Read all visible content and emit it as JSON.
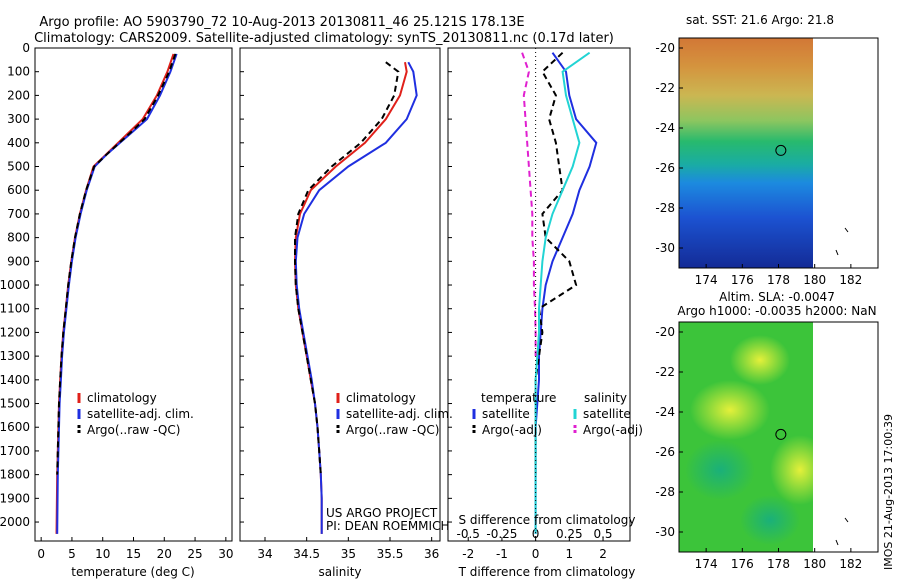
{
  "header": {
    "line1": "Argo profile: AO 5903790_72 10-Aug-2013 20130811_46 25.121S 178.13E",
    "line2": "Climatology: CARS2009. Satellite-adjusted climatology: synTS_20130811.nc (0.17d later)"
  },
  "colors": {
    "climatology": "#e0201a",
    "satellite": "#1f2fe0",
    "argo": "#000000",
    "sal_satellite": "#22d4d4",
    "sal_argo": "#e020d0"
  },
  "chart_data": [
    {
      "id": "temperature",
      "type": "line",
      "xlabel": "temperature (deg C)",
      "ylabel": "",
      "xlim": [
        -1,
        31
      ],
      "ylim": [
        2080,
        0
      ],
      "xticks": [
        0,
        5,
        10,
        15,
        20,
        25,
        30
      ],
      "yticks": [
        0,
        100,
        200,
        300,
        400,
        500,
        600,
        700,
        800,
        900,
        1000,
        1100,
        1200,
        1300,
        1400,
        1500,
        1600,
        1700,
        1800,
        1900,
        2000
      ],
      "legend": [
        "climatology",
        "satellite-adj. clim.",
        "Argo(..raw -QC)"
      ],
      "series": [
        {
          "name": "climatology",
          "style": "solid",
          "x": [
            21.5,
            20.5,
            18.8,
            16.5,
            14.5,
            12.5,
            10.5,
            8.5,
            7.3,
            6.3,
            5.5,
            4.9,
            4.4,
            4.0,
            3.6,
            3.3,
            3.1,
            2.9,
            2.8,
            2.7,
            2.6,
            2.5
          ],
          "y": [
            25,
            100,
            200,
            300,
            350,
            400,
            450,
            500,
            600,
            700,
            800,
            900,
            1000,
            1100,
            1200,
            1300,
            1400,
            1500,
            1600,
            1700,
            1800,
            2050
          ]
        },
        {
          "name": "satellite-adj. clim.",
          "style": "solid",
          "x": [
            22.0,
            21.0,
            19.3,
            17.2,
            15.0,
            12.8,
            10.6,
            8.7,
            7.4,
            6.4,
            5.6,
            5.0,
            4.5,
            4.1,
            3.7,
            3.4,
            3.2,
            3.0,
            2.9,
            2.8,
            2.7,
            2.6
          ],
          "y": [
            25,
            100,
            200,
            300,
            350,
            400,
            450,
            500,
            600,
            700,
            800,
            900,
            1000,
            1100,
            1200,
            1300,
            1400,
            1500,
            1600,
            1700,
            1800,
            2050
          ]
        },
        {
          "name": "Argo(..raw -QC)",
          "style": "dashed",
          "x": [
            21.8,
            20.8,
            19.0,
            16.8,
            14.8,
            12.7,
            10.6,
            8.6,
            7.3,
            6.3,
            5.5,
            4.9,
            4.4,
            4.0,
            3.6,
            3.3,
            3.1,
            2.9,
            2.8,
            2.7,
            2.6
          ],
          "y": [
            25,
            100,
            200,
            300,
            350,
            400,
            450,
            500,
            600,
            700,
            800,
            900,
            1000,
            1100,
            1200,
            1300,
            1400,
            1500,
            1600,
            1700,
            1800
          ]
        }
      ]
    },
    {
      "id": "salinity",
      "type": "line",
      "xlabel": "salinity",
      "ylabel": "",
      "xlim": [
        33.7,
        36.1
      ],
      "ylim": [
        2080,
        0
      ],
      "xticks": [
        34,
        34.5,
        35,
        35.5,
        36
      ],
      "legend": [
        "climatology",
        "satellite-adj. clim.",
        "Argo(..raw -QC)"
      ],
      "series": [
        {
          "name": "climatology",
          "style": "solid",
          "x": [
            35.68,
            35.7,
            35.62,
            35.45,
            35.2,
            34.85,
            34.55,
            34.42,
            34.37,
            34.36,
            34.37,
            34.4,
            34.45,
            34.5,
            34.55,
            34.6,
            34.63,
            34.65,
            34.67,
            34.68,
            34.68
          ],
          "y": [
            60,
            100,
            200,
            300,
            400,
            500,
            600,
            700,
            800,
            900,
            1000,
            1100,
            1200,
            1300,
            1400,
            1500,
            1600,
            1700,
            1800,
            1900,
            2050
          ]
        },
        {
          "name": "satellite-adj. clim.",
          "style": "solid",
          "x": [
            35.72,
            35.78,
            35.82,
            35.7,
            35.45,
            35.0,
            34.65,
            34.47,
            34.39,
            34.37,
            34.38,
            34.41,
            34.46,
            34.51,
            34.56,
            34.6,
            34.63,
            34.65,
            34.67,
            34.68,
            34.68
          ],
          "y": [
            60,
            100,
            200,
            300,
            400,
            500,
            600,
            700,
            800,
            900,
            1000,
            1100,
            1200,
            1300,
            1400,
            1500,
            1600,
            1700,
            1800,
            1900,
            2050
          ]
        },
        {
          "name": "Argo(..raw -QC)",
          "style": "dashed",
          "x": [
            35.45,
            35.6,
            35.55,
            35.4,
            35.15,
            34.8,
            34.52,
            34.4,
            34.36,
            34.36,
            34.37,
            34.4,
            34.45,
            34.5,
            34.55,
            34.6,
            34.63,
            34.65,
            34.67
          ],
          "y": [
            60,
            100,
            200,
            300,
            400,
            500,
            600,
            700,
            800,
            900,
            1000,
            1100,
            1200,
            1300,
            1400,
            1500,
            1600,
            1700,
            1800
          ]
        }
      ],
      "annotations": [
        "US ARGO PROJECT",
        "PI: DEAN ROEMMICH"
      ]
    },
    {
      "id": "difference",
      "type": "line",
      "xlabel": "T difference from climatology",
      "xlabel2": "S difference from climatology",
      "xlim": [
        -2.6,
        2.8
      ],
      "ylim": [
        2080,
        0
      ],
      "xticks": [
        -2,
        -1,
        0,
        1,
        2
      ],
      "xticks2": [
        -0.5,
        -0.25,
        0,
        0.25,
        0.5
      ],
      "legend_headers": [
        "temperature",
        "salinity"
      ],
      "legend": [
        "satellite",
        "Argo(-adj)",
        "satellite",
        "Argo(-adj)"
      ],
      "series": [
        {
          "name": "satellite",
          "quantity": "temperature",
          "style": "solid",
          "x": [
            0.5,
            0.9,
            1.0,
            1.2,
            1.8,
            1.6,
            1.3,
            1.1,
            0.8,
            0.5,
            0.3,
            0.2,
            0.15,
            0.1,
            0.1,
            0.05,
            0.0,
            0.0,
            0.0,
            0.0,
            0.0
          ],
          "y": [
            20,
            100,
            200,
            300,
            400,
            500,
            600,
            700,
            800,
            900,
            1000,
            1100,
            1200,
            1300,
            1400,
            1500,
            1600,
            1700,
            1800,
            1900,
            2050
          ]
        },
        {
          "name": "Argo(-adj)",
          "quantity": "temperature",
          "style": "dashed",
          "x": [
            0.8,
            0.2,
            0.6,
            0.4,
            0.6,
            0.7,
            0.8,
            0.2,
            0.3,
            1.0,
            1.2,
            0.1,
            0.2,
            0.1,
            0.0,
            0.0,
            0.0,
            0.0,
            0.0
          ],
          "y": [
            20,
            100,
            200,
            300,
            400,
            500,
            600,
            700,
            800,
            900,
            1000,
            1100,
            1200,
            1300,
            1400,
            1500,
            1600,
            1700,
            1800
          ]
        },
        {
          "name": "satellite",
          "quantity": "salinity",
          "style": "solid",
          "x": [
            1.6,
            0.8,
            0.9,
            1.1,
            1.3,
            1.1,
            0.8,
            0.5,
            0.3,
            0.2,
            0.15,
            0.1,
            0.1,
            0.05,
            0.0,
            0.0,
            0.0,
            0.0,
            0.0
          ],
          "y": [
            20,
            100,
            200,
            300,
            400,
            500,
            600,
            700,
            800,
            900,
            1000,
            1100,
            1200,
            1300,
            1400,
            1500,
            1600,
            1700,
            2050
          ]
        },
        {
          "name": "Argo(-adj)",
          "quantity": "salinity",
          "style": "dashed",
          "x": [
            -0.4,
            -0.2,
            -0.35,
            -0.3,
            -0.25,
            -0.2,
            -0.15,
            -0.1,
            -0.1,
            -0.05,
            -0.05,
            -0.02,
            0.0,
            0.0
          ],
          "y": [
            20,
            100,
            200,
            300,
            400,
            500,
            600,
            700,
            800,
            900,
            1000,
            1100,
            1200,
            1300
          ]
        }
      ]
    },
    {
      "id": "sst-map",
      "type": "heatmap",
      "title": "sat. SST: 21.6  Argo: 21.8",
      "xlim": [
        172.5,
        183.5
      ],
      "ylim": [
        -31,
        -19.5
      ],
      "xticks": [
        174,
        176,
        178,
        180,
        182
      ],
      "yticks": [
        -20,
        -22,
        -24,
        -26,
        -28,
        -30
      ],
      "marker": {
        "lon": 178.13,
        "lat": -25.121
      }
    },
    {
      "id": "sla-map",
      "type": "heatmap",
      "title": "Altim. SLA: -0.0047",
      "subtitle": "Argo h1000: -0.0035  h2000: NaN",
      "xlim": [
        172.5,
        183.5
      ],
      "ylim": [
        -31,
        -19.5
      ],
      "xticks": [
        174,
        176,
        178,
        180,
        182
      ],
      "yticks": [
        -20,
        -22,
        -24,
        -26,
        -28,
        -30
      ],
      "marker": {
        "lon": 178.13,
        "lat": -25.121
      }
    }
  ],
  "footer": {
    "stamp": "IMOS 21-Aug-2013 17:00:39"
  }
}
